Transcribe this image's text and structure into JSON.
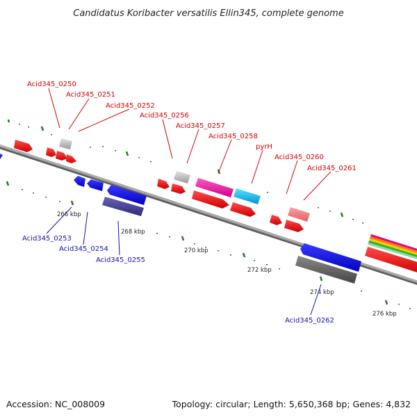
{
  "title": "Candidatus Koribacter versatilis Ellin345, complete genome",
  "footer": {
    "accession": "Accession: NC_008009",
    "info": "Topology: circular; Length: 5,650,368 bp; Genes: 4,832"
  },
  "colors": {
    "label_top": "#d40000",
    "label_bottom": "#1010b0",
    "tick": "#1a7a1a",
    "backbone": "#8a8a8a"
  },
  "ticks": [
    "266 kbp",
    "268 kbp",
    "270 kbp",
    "272 kbp",
    "274 kbp",
    "276 kbp"
  ],
  "genes_top": [
    "Acid345_0250",
    "Acid345_0251",
    "Acid345_0252",
    "Acid345_0256",
    "Acid345_0257",
    "Acid345_0258",
    "pyrH",
    "Acid345_0260",
    "Acid345_0261"
  ],
  "genes_bottom": [
    "Acid345_0253",
    "Acid345_0254",
    "Acid345_0255",
    "Acid345_0262"
  ]
}
